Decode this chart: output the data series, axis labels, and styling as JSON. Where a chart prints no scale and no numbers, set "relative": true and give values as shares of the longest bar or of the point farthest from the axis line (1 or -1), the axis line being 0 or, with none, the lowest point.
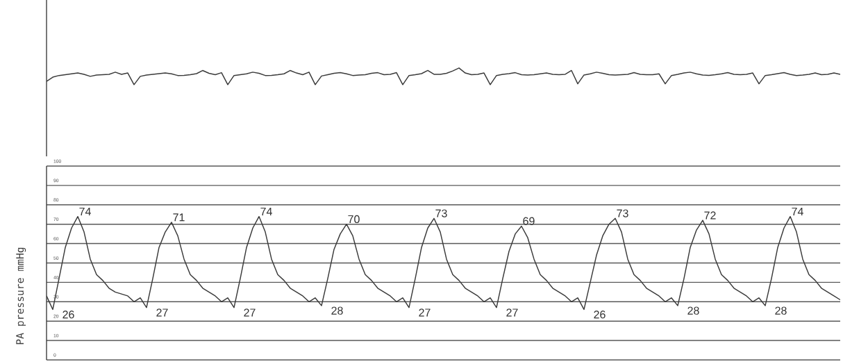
{
  "chart_data": [
    {
      "type": "line",
      "relative": true,
      "tick_labels": false,
      "color": "#3a3a3a",
      "categories": [
        null,
        null,
        null,
        null,
        null,
        null,
        null,
        null,
        null,
        null,
        null,
        null,
        null,
        null,
        null,
        null,
        null,
        null,
        null,
        null,
        null,
        null,
        null,
        null,
        null,
        null,
        null,
        null,
        null,
        null,
        null,
        null,
        null,
        null,
        null,
        null,
        null,
        null,
        null,
        null,
        null,
        null,
        null,
        null,
        null,
        null,
        null,
        null,
        null,
        null,
        null,
        null,
        null,
        null,
        null,
        null,
        null,
        null,
        null,
        null,
        null,
        null,
        null,
        null,
        null,
        null,
        null,
        null,
        null,
        null,
        null,
        null,
        null,
        null,
        null,
        null,
        null,
        null,
        null,
        null,
        null,
        null,
        null,
        null,
        null,
        null,
        null,
        null,
        null,
        null,
        null,
        null,
        null,
        null,
        null,
        null,
        null,
        null,
        null,
        null,
        null,
        null,
        null,
        null,
        null,
        null,
        null,
        null,
        null,
        null,
        null,
        null,
        null,
        null,
        null,
        null,
        null,
        null,
        null,
        null,
        null,
        null,
        null,
        null,
        null,
        null,
        null,
        null
      ],
      "values": [
        0.2,
        0.45,
        0.55,
        0.6,
        0.65,
        0.7,
        0.62,
        0.5,
        0.58,
        0.6,
        0.62,
        0.75,
        0.62,
        0.7,
        0,
        0.5,
        0.58,
        0.62,
        0.66,
        0.7,
        0.65,
        0.55,
        0.56,
        0.6,
        0.66,
        0.85,
        0.68,
        0.6,
        0.72,
        0,
        0.55,
        0.6,
        0.65,
        0.75,
        0.68,
        0.55,
        0.56,
        0.6,
        0.65,
        0.85,
        0.7,
        0.6,
        0.75,
        0,
        0.52,
        0.6,
        0.68,
        0.72,
        0.65,
        0.55,
        0.58,
        0.6,
        0.68,
        0.72,
        0.6,
        0.62,
        0.72,
        0,
        0.55,
        0.6,
        0.66,
        0.85,
        0.62,
        0.62,
        0.68,
        0.82,
        1,
        0.7,
        0.6,
        0.62,
        0.7,
        0,
        0.55,
        0.62,
        0.66,
        0.72,
        0.6,
        0.58,
        0.6,
        0.65,
        0.7,
        0.62,
        0.6,
        0.62,
        0.85,
        0.05,
        0.58,
        0.65,
        0.75,
        0.68,
        0.6,
        0.58,
        0.6,
        0.62,
        0.72,
        0.62,
        0.6,
        0.6,
        0.65,
        0.05,
        0.55,
        0.62,
        0.7,
        0.75,
        0.65,
        0.58,
        0.56,
        0.6,
        0.65,
        0.72,
        0.62,
        0.6,
        0.62,
        0.7,
        0.05,
        0.55,
        0.6,
        0.66,
        0.72,
        0.62,
        0.55,
        0.58,
        0.62,
        0.7,
        0.6,
        0.62,
        0.7,
        0.62
      ]
    },
    {
      "type": "line",
      "ylabel": "PA pressure mmHg",
      "color": "#3a3a3a",
      "grid": "y",
      "tick_labels": "y",
      "ylim": [
        0,
        100
      ],
      "yticks": [
        0,
        10,
        20,
        30,
        40,
        50,
        60,
        70,
        80,
        90,
        100
      ],
      "categories": [
        null,
        null,
        null,
        null,
        null,
        null,
        null,
        null,
        null,
        null,
        null,
        null,
        null,
        null,
        null,
        null,
        null,
        null,
        null,
        null,
        null,
        null,
        null,
        null,
        null,
        null,
        null,
        null,
        null,
        null,
        null,
        null,
        null,
        null,
        null,
        null,
        null,
        null,
        null,
        null,
        null,
        null,
        null,
        null,
        null,
        null,
        null,
        null,
        null,
        null,
        null,
        null,
        null,
        null,
        null,
        null,
        null,
        null,
        null,
        null,
        null,
        null,
        null,
        null,
        null,
        null,
        null,
        null,
        null,
        null,
        null,
        null,
        null,
        null,
        null,
        null,
        null,
        null,
        null,
        null,
        null,
        null,
        null,
        null,
        null,
        null,
        null,
        null,
        null,
        null,
        null,
        null,
        null,
        null,
        null,
        null,
        null,
        null,
        null,
        null,
        null,
        null,
        null,
        null,
        null,
        null,
        null,
        null,
        null,
        null,
        null,
        null,
        null,
        null,
        null,
        null,
        null,
        null,
        null,
        null,
        null,
        null,
        null,
        null,
        null,
        null,
        null,
        null
      ],
      "values": [
        33,
        26,
        42,
        58,
        68,
        74,
        66,
        52,
        44,
        41,
        37,
        35,
        34,
        33,
        30,
        32,
        27,
        42,
        58,
        66,
        71,
        64,
        52,
        44,
        41,
        37,
        35,
        33,
        30,
        32,
        27,
        42,
        58,
        68,
        74,
        66,
        52,
        44,
        41,
        37,
        35,
        33,
        30,
        32,
        28,
        42,
        57,
        65,
        70,
        64,
        52,
        44,
        41,
        37,
        35,
        33,
        30,
        32,
        27,
        42,
        58,
        68,
        73,
        66,
        52,
        44,
        41,
        37,
        35,
        33,
        30,
        32,
        27,
        42,
        56,
        65,
        69,
        63,
        52,
        44,
        41,
        37,
        35,
        33,
        30,
        32,
        26,
        40,
        54,
        64,
        70,
        73,
        66,
        52,
        44,
        41,
        37,
        35,
        33,
        30,
        32,
        28,
        42,
        58,
        67,
        72,
        65,
        52,
        44,
        41,
        37,
        35,
        33,
        30,
        32,
        28,
        42,
        58,
        68,
        74,
        66,
        52,
        44,
        41,
        37,
        35,
        33,
        31
      ],
      "value_labels": [
        null,
        "26",
        null,
        null,
        null,
        "74",
        null,
        null,
        null,
        null,
        null,
        null,
        null,
        null,
        null,
        null,
        "27",
        null,
        null,
        null,
        "71",
        null,
        null,
        null,
        null,
        null,
        null,
        null,
        null,
        null,
        "27",
        null,
        null,
        null,
        "74",
        null,
        null,
        null,
        null,
        null,
        null,
        null,
        null,
        null,
        "28",
        null,
        null,
        null,
        "70",
        null,
        null,
        null,
        null,
        null,
        null,
        null,
        null,
        null,
        "27",
        null,
        null,
        null,
        "73",
        null,
        null,
        null,
        null,
        null,
        null,
        null,
        null,
        null,
        "27",
        null,
        null,
        null,
        "69",
        null,
        null,
        null,
        null,
        null,
        null,
        null,
        null,
        null,
        "26",
        null,
        null,
        null,
        null,
        "73",
        null,
        null,
        null,
        null,
        null,
        null,
        null,
        null,
        null,
        "28",
        null,
        null,
        null,
        "72",
        null,
        null,
        null,
        null,
        null,
        null,
        null,
        null,
        null,
        "28",
        null,
        null,
        null,
        "74",
        null,
        null,
        null,
        null,
        null,
        null,
        null,
        null
      ]
    }
  ]
}
